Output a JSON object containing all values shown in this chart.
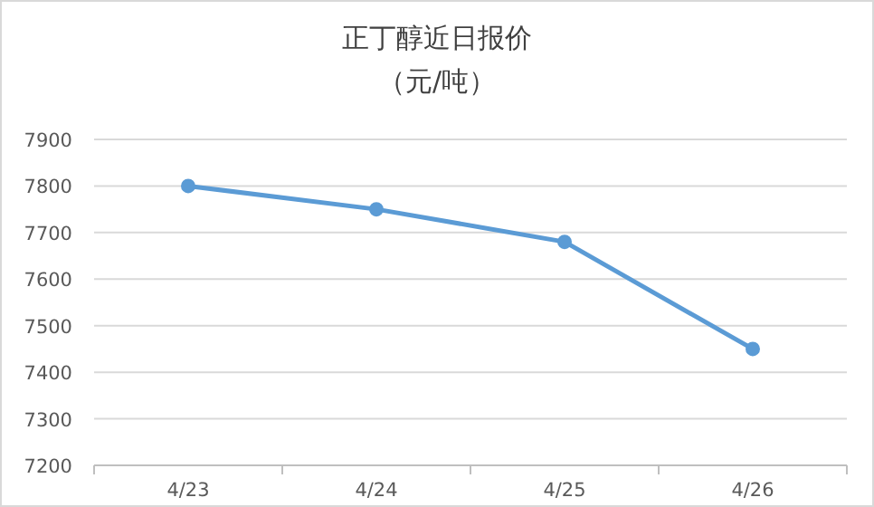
{
  "chart_data": {
    "type": "line",
    "title": "正丁醇近日报价",
    "subtitle": "（元/吨）",
    "categories": [
      "4/23",
      "4/24",
      "4/25",
      "4/26"
    ],
    "values": [
      7800,
      7750,
      7680,
      7450
    ],
    "color": "#5b9bd5",
    "marker": "circle",
    "ylim": [
      7200,
      7900
    ],
    "yticks": [
      7200,
      7300,
      7400,
      7500,
      7600,
      7700,
      7800,
      7900
    ],
    "grid": "y"
  }
}
